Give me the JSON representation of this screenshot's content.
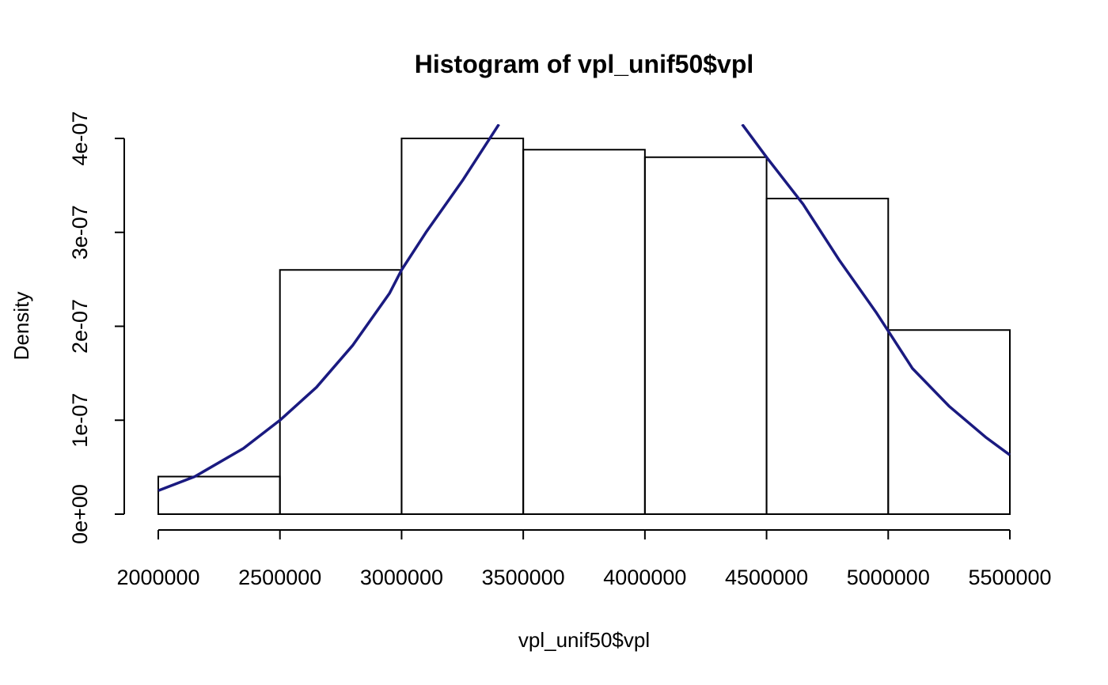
{
  "chart_data": {
    "type": "bar",
    "title": "Histogram of vpl_unif50$vpl",
    "xlabel": "vpl_unif50$vpl",
    "ylabel": "Density",
    "bins": [
      {
        "start": 2000000,
        "end": 2500000,
        "density": 4e-08
      },
      {
        "start": 2500000,
        "end": 3000000,
        "density": 2.6e-07
      },
      {
        "start": 3000000,
        "end": 3500000,
        "density": 4e-07
      },
      {
        "start": 3500000,
        "end": 4000000,
        "density": 3.88e-07
      },
      {
        "start": 4000000,
        "end": 4500000,
        "density": 3.8e-07
      },
      {
        "start": 4500000,
        "end": 5000000,
        "density": 3.36e-07
      },
      {
        "start": 5000000,
        "end": 5500000,
        "density": 1.96e-07
      }
    ],
    "xlim": [
      2000000,
      5500000
    ],
    "ylim": [
      0,
      4.15e-07
    ],
    "x_ticks": [
      {
        "value": 2000000,
        "label": "2000000"
      },
      {
        "value": 2500000,
        "label": "2500000"
      },
      {
        "value": 3000000,
        "label": "3000000"
      },
      {
        "value": 3500000,
        "label": "3500000"
      },
      {
        "value": 4000000,
        "label": "4000000"
      },
      {
        "value": 4500000,
        "label": "4500000"
      },
      {
        "value": 5000000,
        "label": "5000000"
      },
      {
        "value": 5500000,
        "label": "5500000"
      }
    ],
    "y_ticks": [
      {
        "value": 0,
        "label": "0e+00"
      },
      {
        "value": 1e-07,
        "label": "1e-07"
      },
      {
        "value": 2e-07,
        "label": "2e-07"
      },
      {
        "value": 3e-07,
        "label": "3e-07"
      },
      {
        "value": 4e-07,
        "label": "4e-07"
      }
    ],
    "density_curve": {
      "type": "line",
      "color": "#1a1a80",
      "x": [
        2000000,
        2150000,
        2350000,
        2500000,
        2650000,
        2800000,
        2950000,
        3000000,
        3100000,
        3250000,
        3400000,
        4400000,
        4500000,
        4650000,
        4800000,
        4950000,
        5000000,
        5100000,
        5250000,
        5400000,
        5500000
      ],
      "y": [
        2.5e-08,
        4e-08,
        7e-08,
        1e-07,
        1.35e-07,
        1.8e-07,
        2.35e-07,
        2.6e-07,
        3e-07,
        3.55e-07,
        4.15e-07,
        4.15e-07,
        3.8e-07,
        3.3e-07,
        2.7e-07,
        2.15e-07,
        1.95e-07,
        1.55e-07,
        1.15e-07,
        8.2e-08,
        6.3e-08
      ]
    },
    "grid": false,
    "legend": "none"
  }
}
